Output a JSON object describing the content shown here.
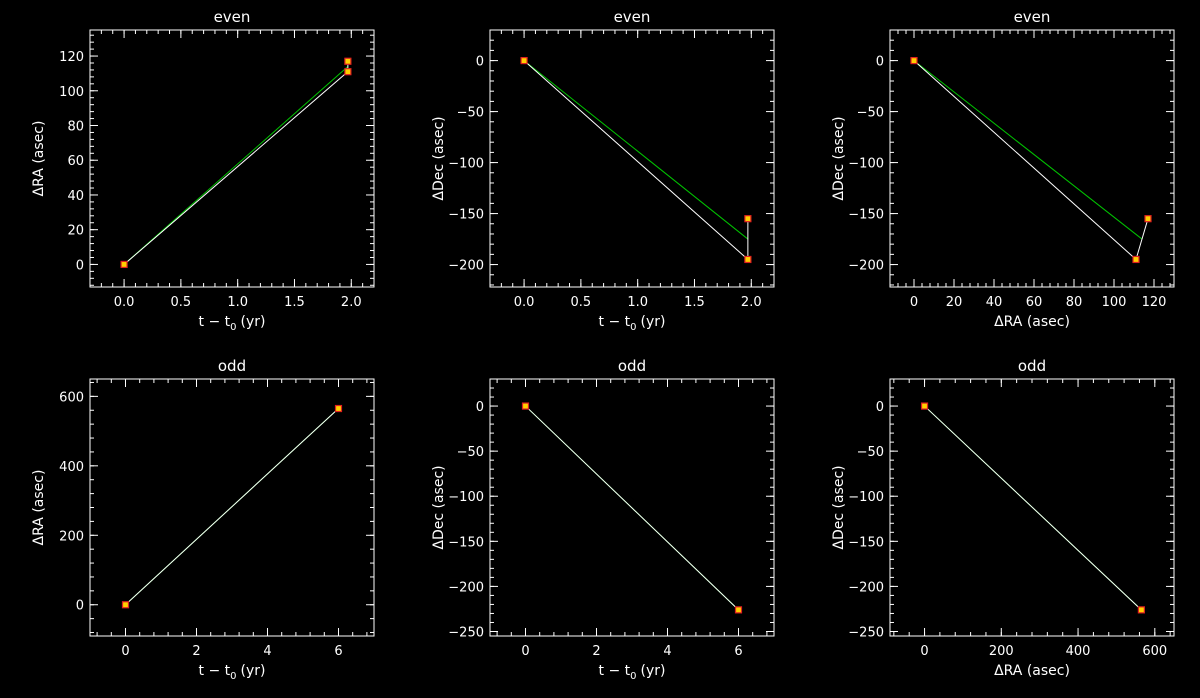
{
  "chart_data": [
    {
      "type": "line",
      "title": "even",
      "xlabel": "t − t",
      "xlabel_sub": "0",
      "xlabel_unit": "(yr)",
      "ylabel": "ΔRA (asec)",
      "xlim": [
        -0.3,
        2.2
      ],
      "ylim": [
        -13,
        135
      ],
      "xticks": [
        0.0,
        0.5,
        1.0,
        1.5,
        2.0
      ],
      "xtick_labels": [
        "0.0",
        "0.5",
        "1.0",
        "1.5",
        "2.0"
      ],
      "yticks": [
        0,
        20,
        40,
        60,
        80,
        100,
        120
      ],
      "ytick_labels": [
        "0",
        "20",
        "40",
        "60",
        "80",
        "100",
        "120"
      ],
      "observed": {
        "x": [
          0.0,
          1.97,
          1.97
        ],
        "y": [
          0.0,
          111.0,
          117.0
        ]
      },
      "fit": {
        "x": [
          0.0,
          1.97
        ],
        "y": [
          0.0,
          114.0
        ]
      }
    },
    {
      "type": "line",
      "title": "even",
      "xlabel": "t − t",
      "xlabel_sub": "0",
      "xlabel_unit": "(yr)",
      "ylabel": "ΔDec (asec)",
      "xlim": [
        -0.3,
        2.2
      ],
      "ylim": [
        -222,
        30
      ],
      "xticks": [
        0.0,
        0.5,
        1.0,
        1.5,
        2.0
      ],
      "xtick_labels": [
        "0.0",
        "0.5",
        "1.0",
        "1.5",
        "2.0"
      ],
      "yticks": [
        0,
        -50,
        -100,
        -150,
        -200
      ],
      "ytick_labels": [
        "0",
        "−50",
        "−100",
        "−150",
        "−200"
      ],
      "observed": {
        "x": [
          0.0,
          1.97,
          1.97
        ],
        "y": [
          0.0,
          -195.0,
          -155.0
        ]
      },
      "fit": {
        "x": [
          0.0,
          1.97
        ],
        "y": [
          0.0,
          -175.0
        ]
      }
    },
    {
      "type": "line",
      "title": "even",
      "xlabel": "ΔRA (asec)",
      "ylabel": "ΔDec (asec)",
      "xlim": [
        -12,
        130
      ],
      "ylim": [
        -222,
        30
      ],
      "xticks": [
        0,
        20,
        40,
        60,
        80,
        100,
        120
      ],
      "xtick_labels": [
        "0",
        "20",
        "40",
        "60",
        "80",
        "100",
        "120"
      ],
      "yticks": [
        0,
        -50,
        -100,
        -150,
        -200
      ],
      "ytick_labels": [
        "0",
        "−50",
        "−100",
        "−150",
        "−200"
      ],
      "observed": {
        "x": [
          0.0,
          111.0,
          117.0
        ],
        "y": [
          0.0,
          -195.0,
          -155.0
        ]
      },
      "fit": {
        "x": [
          0.0,
          114.0
        ],
        "y": [
          0.0,
          -175.0
        ]
      }
    },
    {
      "type": "line",
      "title": "odd",
      "xlabel": "t − t",
      "xlabel_sub": "0",
      "xlabel_unit": "(yr)",
      "ylabel": "ΔRA (asec)",
      "xlim": [
        -1,
        7
      ],
      "ylim": [
        -90,
        650
      ],
      "xticks": [
        0,
        2,
        4,
        6
      ],
      "xtick_labels": [
        "0",
        "2",
        "4",
        "6"
      ],
      "yticks": [
        0,
        200,
        400,
        600
      ],
      "ytick_labels": [
        "0",
        "200",
        "400",
        "600"
      ],
      "observed": {
        "x": [
          0,
          6
        ],
        "y": [
          0,
          565
        ]
      },
      "fit": {
        "x": [
          0,
          6
        ],
        "y": [
          0,
          565
        ]
      }
    },
    {
      "type": "line",
      "title": "odd",
      "xlabel": "t − t",
      "xlabel_sub": "0",
      "xlabel_unit": "(yr)",
      "ylabel": "ΔDec (asec)",
      "xlim": [
        -1,
        7
      ],
      "ylim": [
        -255,
        30
      ],
      "xticks": [
        0,
        2,
        4,
        6
      ],
      "xtick_labels": [
        "0",
        "2",
        "4",
        "6"
      ],
      "yticks": [
        0,
        -50,
        -100,
        -150,
        -200,
        -250
      ],
      "ytick_labels": [
        "0",
        "−50",
        "−100",
        "−150",
        "−200",
        "−250"
      ],
      "observed": {
        "x": [
          0,
          6
        ],
        "y": [
          0,
          -226
        ]
      },
      "fit": {
        "x": [
          0,
          6
        ],
        "y": [
          0,
          -226
        ]
      }
    },
    {
      "type": "line",
      "title": "odd",
      "xlabel": "ΔRA (asec)",
      "ylabel": "ΔDec (asec)",
      "xlim": [
        -90,
        650
      ],
      "ylim": [
        -255,
        30
      ],
      "xticks": [
        0,
        200,
        400,
        600
      ],
      "xtick_labels": [
        "0",
        "200",
        "400",
        "600"
      ],
      "yticks": [
        0,
        -50,
        -100,
        -150,
        -200,
        -250
      ],
      "ytick_labels": [
        "0",
        "−50",
        "−100",
        "−150",
        "−200",
        "−250"
      ],
      "observed": {
        "x": [
          0,
          565
        ],
        "y": [
          0,
          -226
        ]
      },
      "fit": {
        "x": [
          0,
          565
        ],
        "y": [
          0,
          -226
        ]
      }
    }
  ],
  "colors": {
    "background": "#000000",
    "axes": "#ffffff",
    "observed_line": "#ffffff",
    "fit_line": "#00c400",
    "marker_edge": "#e02020",
    "marker_fill": "#ffd000"
  }
}
